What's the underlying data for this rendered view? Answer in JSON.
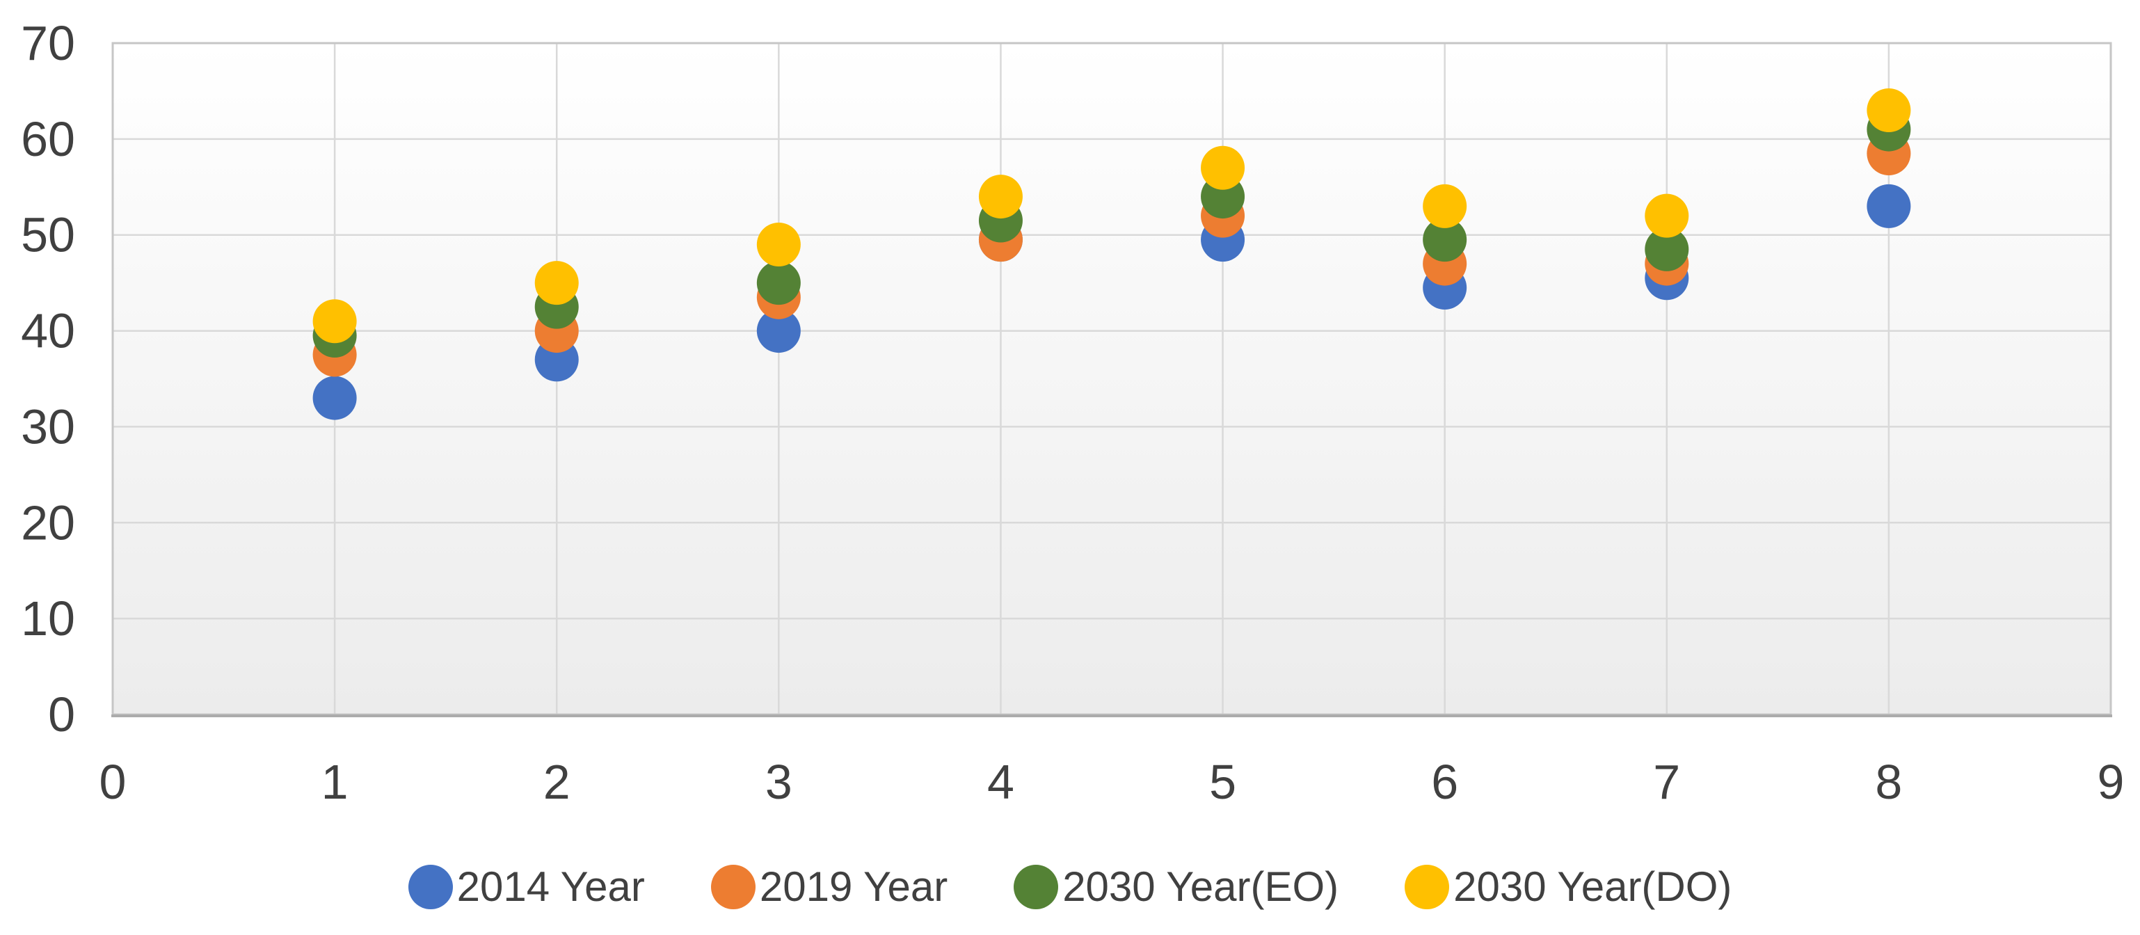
{
  "chart_data": {
    "type": "scatter",
    "title": "",
    "xlabel": "",
    "ylabel": "",
    "x": [
      1,
      2,
      3,
      4,
      5,
      6,
      7,
      8
    ],
    "series": [
      {
        "name": "2014 Year",
        "color": "#4472C4",
        "values": [
          33,
          37,
          40,
          49.5,
          49.5,
          44.5,
          45.5,
          53
        ]
      },
      {
        "name": "2019 Year",
        "color": "#ED7D31",
        "values": [
          37.5,
          40,
          43.5,
          49.5,
          52,
          47,
          47,
          58.5
        ]
      },
      {
        "name": "2030 Year(EO)",
        "color": "#548235",
        "values": [
          39.5,
          42.5,
          45,
          51.5,
          54,
          49.5,
          48.5,
          61
        ]
      },
      {
        "name": "2030 Year(DO)",
        "color": "#FFC000",
        "values": [
          41,
          45,
          49,
          54,
          57,
          53,
          52,
          63
        ]
      }
    ],
    "xlim": [
      0,
      9
    ],
    "ylim": [
      0,
      70
    ],
    "x_ticks": [
      0,
      1,
      2,
      3,
      4,
      5,
      6,
      7,
      8,
      9
    ],
    "y_ticks": [
      0,
      10,
      20,
      30,
      40,
      50,
      60,
      70
    ],
    "grid": true,
    "legend_position": "bottom",
    "marker_radius_px": 31.5
  },
  "styles": {
    "gridline_color": "#D9D9D9",
    "plot_border_color": "#C6C6C6",
    "axis_line_color": "#ABABAB",
    "tick_label_color": "#404040",
    "legend_text_color": "#404040",
    "plot_bg_top": "#FFFFFF",
    "plot_bg_bottom": "#ECECEC",
    "page_bg": "#FFFFFF"
  }
}
